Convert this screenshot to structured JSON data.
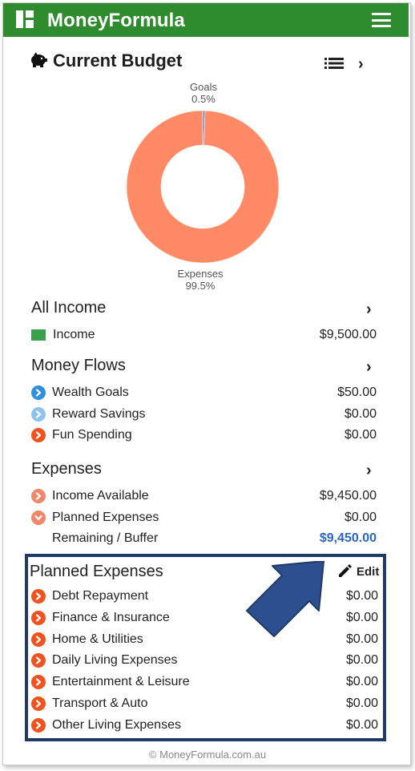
{
  "app": {
    "title": "MoneyFormula"
  },
  "budget": {
    "title": "Current Budget",
    "chart_data": {
      "type": "pie",
      "slices": [
        {
          "label": "Goals",
          "percent_label": "0.5%",
          "value": 0.5,
          "color": "#6a8fc4"
        },
        {
          "label": "Expenses",
          "percent_label": "99.5%",
          "value": 99.5,
          "color": "#ff8a65"
        }
      ]
    }
  },
  "income": {
    "title": "All Income",
    "items": [
      {
        "label": "Income",
        "amount": "$9,500.00",
        "color": "#3aa14a"
      }
    ]
  },
  "flows": {
    "title": "Money Flows",
    "items": [
      {
        "label": "Wealth Goals",
        "amount": "$50.00",
        "color": "#2f8fe0"
      },
      {
        "label": "Reward Savings",
        "amount": "$0.00",
        "color": "#8fc3ee"
      },
      {
        "label": "Fun Spending",
        "amount": "$0.00",
        "color": "#f2531e"
      }
    ]
  },
  "expenses": {
    "title": "Expenses",
    "items": [
      {
        "label": "Income Available",
        "amount": "$9,450.00",
        "color": "#f0876a"
      },
      {
        "label": "Planned Expenses",
        "amount": "$0.00",
        "color": "#f0876a"
      },
      {
        "label": "Remaining / Buffer",
        "amount": "$9,450.00"
      }
    ]
  },
  "planned": {
    "title": "Planned Expenses",
    "edit_label": "Edit",
    "items": [
      {
        "label": "Debt Repayment",
        "amount": "$0.00"
      },
      {
        "label": "Finance & Insurance",
        "amount": "$0.00"
      },
      {
        "label": "Home & Utilities",
        "amount": "$0.00"
      },
      {
        "label": "Daily Living Expenses",
        "amount": "$0.00"
      },
      {
        "label": "Entertainment & Leisure",
        "amount": "$0.00"
      },
      {
        "label": "Transport & Auto",
        "amount": "$0.00"
      },
      {
        "label": "Other Living Expenses",
        "amount": "$0.00"
      }
    ],
    "icon_color": "#f2531e"
  },
  "footer": {
    "text": "© MoneyFormula.com.au"
  }
}
